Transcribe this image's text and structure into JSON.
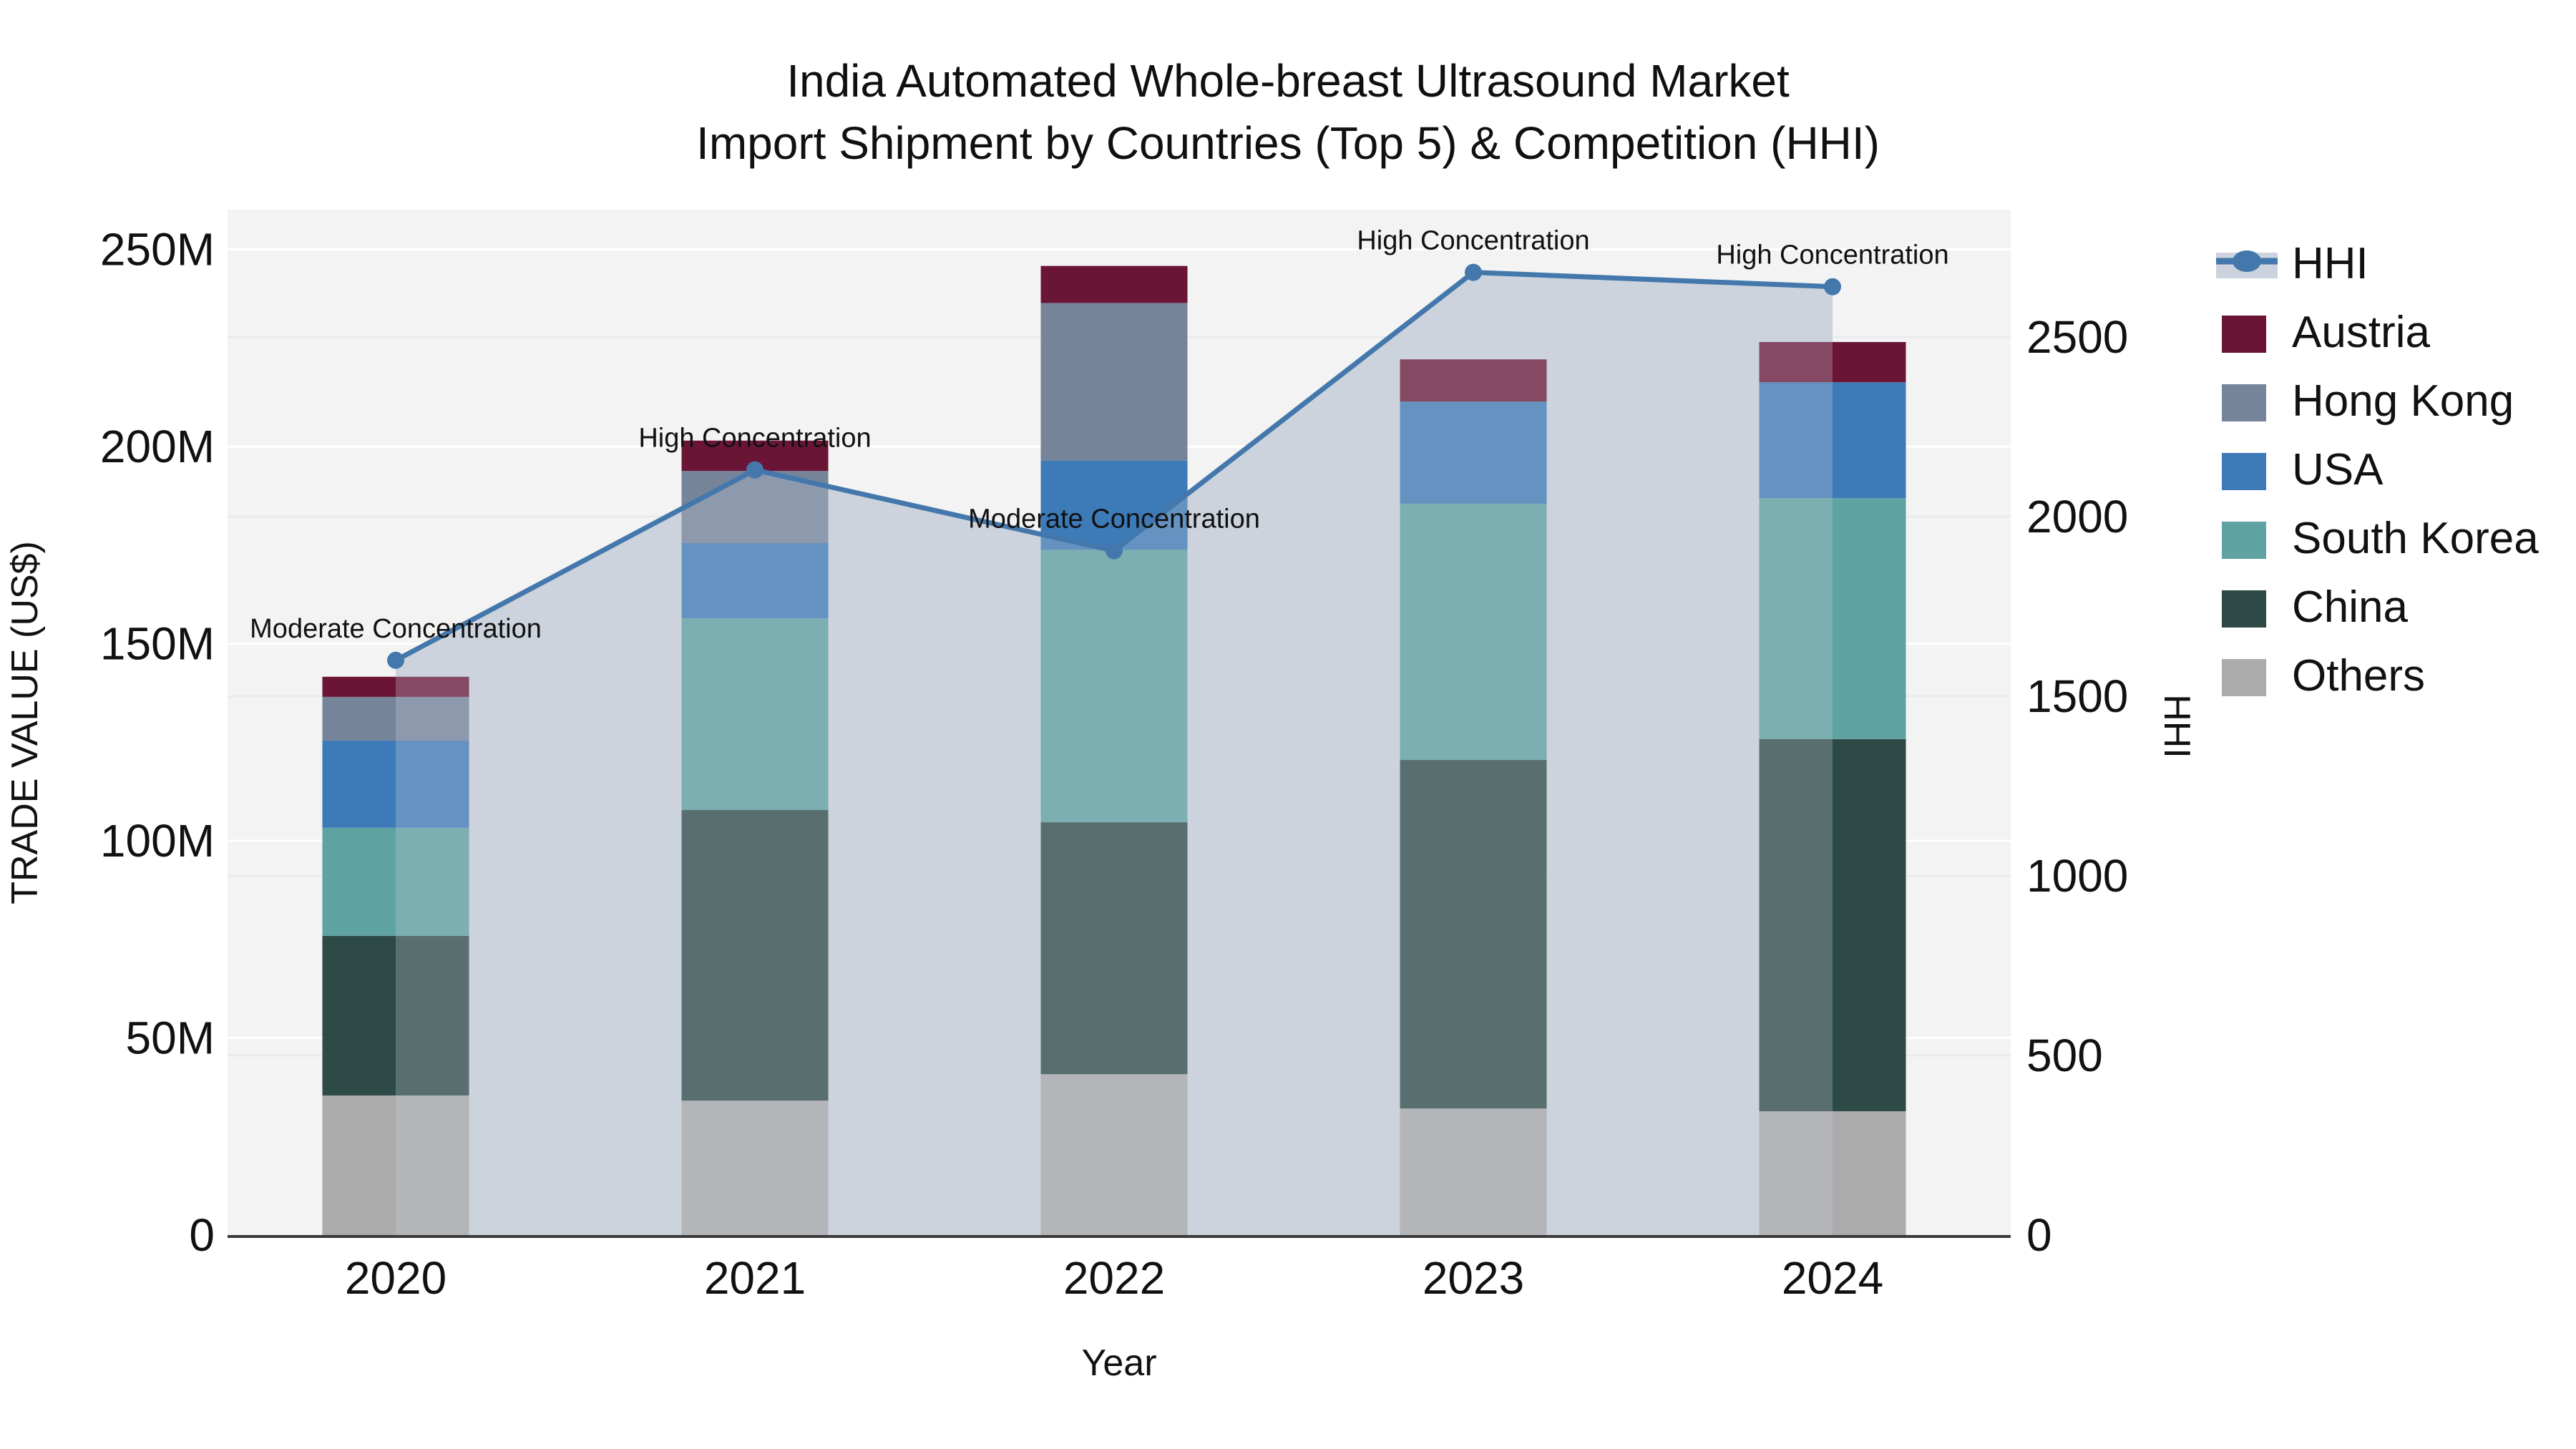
{
  "title": {
    "line1": "India Automated Whole-breast Ultrasound Market",
    "line2": "Import Shipment by Countries (Top 5) & Competition (HHI)"
  },
  "chart_data": {
    "type": "bar+line",
    "categories": [
      "2020",
      "2021",
      "2022",
      "2023",
      "2024"
    ],
    "xlabel": "Year",
    "ylabel_left": "TRADE VALUE (US$)",
    "ylabel_right": "HHI",
    "y_left_ticks": [
      "0",
      "50M",
      "100M",
      "150M",
      "200M",
      "250M"
    ],
    "y_left_tick_values": [
      0,
      50,
      100,
      150,
      200,
      250
    ],
    "y_left_max": 260,
    "y_right_ticks": [
      "0",
      "500",
      "1000",
      "1500",
      "2000",
      "2500"
    ],
    "y_right_tick_values": [
      0,
      500,
      1000,
      1500,
      2000,
      2500
    ],
    "y_right_max": 2850,
    "grid": true,
    "legend_position": "right",
    "stack_order_note": "series listed bottom-to-top of stack, values in millions US$",
    "series": [
      {
        "name": "Others",
        "color": "#ababab",
        "values": [
          35.4,
          34.1,
          40.8,
          32.1,
          31.4
        ]
      },
      {
        "name": "China",
        "color": "#2e4a46",
        "values": [
          40.5,
          73.7,
          63.9,
          88.4,
          94.4
        ]
      },
      {
        "name": "South Korea",
        "color": "#5fa2a2",
        "values": [
          27.4,
          48.6,
          69.1,
          65.0,
          61.1
        ]
      },
      {
        "name": "USA",
        "color": "#3d7ab8",
        "values": [
          22.1,
          19.1,
          22.6,
          25.9,
          29.4
        ]
      },
      {
        "name": "Hong Kong",
        "color": "#76849a",
        "values": [
          11.1,
          18.3,
          40.0,
          0.0,
          0.0
        ]
      },
      {
        "name": "Austria",
        "color": "#6b1536",
        "values": [
          5.1,
          7.7,
          9.4,
          10.7,
          10.2
        ]
      }
    ],
    "bar_totals_musd": [
      141.6,
      201.5,
      245.8,
      222.1,
      226.5
    ],
    "hhi_line": {
      "name": "HHI",
      "color": "#4478ac",
      "fill_color": "#cad0da",
      "values": [
        1600,
        2130,
        1905,
        2680,
        2640
      ],
      "annotations": [
        "Moderate Concentration",
        "High Concentration",
        "Moderate Concentration",
        "High Concentration",
        "High Concentration"
      ]
    }
  },
  "legend": {
    "items": [
      {
        "label": "HHI",
        "swatch": "line-marker",
        "color": "#4478ac",
        "band": "#ccd3de"
      },
      {
        "label": "Austria",
        "swatch": "square",
        "color": "#6b1536"
      },
      {
        "label": "Hong Kong",
        "swatch": "square",
        "color": "#76849a"
      },
      {
        "label": "USA",
        "swatch": "square",
        "color": "#3d7ab8"
      },
      {
        "label": "South Korea",
        "swatch": "square",
        "color": "#5fa2a2"
      },
      {
        "label": "China",
        "swatch": "square",
        "color": "#2e4a46"
      },
      {
        "label": "Others",
        "swatch": "square",
        "color": "#ababab"
      }
    ]
  }
}
